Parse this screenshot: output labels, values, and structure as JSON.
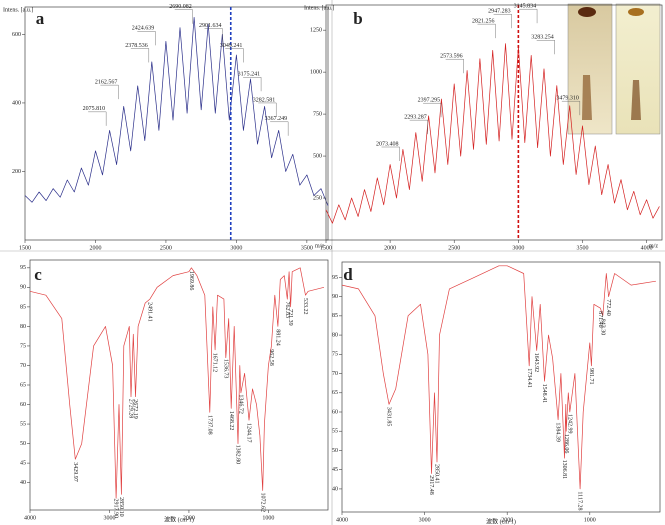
{
  "chart_data": [
    {
      "type": "line",
      "panel": "a",
      "ylabel": "Intens. [a.u.]",
      "xlabel": "m/z",
      "xlim": [
        1500,
        3650
      ],
      "ylim": [
        0,
        680
      ],
      "xticks": [
        1500,
        2000,
        2500,
        3000,
        3500
      ],
      "yticks": [
        200,
        400,
        600
      ],
      "marker_x": 2960,
      "marker_color": "#1f3fbf",
      "peak_labels_vertical": false,
      "series": [
        {
          "color": "#2b2f8a",
          "x": [
            1500,
            1550,
            1600,
            1650,
            1700,
            1750,
            1800,
            1850,
            1900,
            1950,
            2000,
            2050,
            2100,
            2150,
            2200,
            2250,
            2300,
            2350,
            2400,
            2450,
            2500,
            2550,
            2600,
            2650,
            2700,
            2750,
            2800,
            2850,
            2900,
            2950,
            3000,
            3050,
            3100,
            3150,
            3200,
            3250,
            3300,
            3350,
            3400,
            3450,
            3500,
            3550,
            3600,
            3650
          ],
          "values": [
            130,
            110,
            140,
            115,
            150,
            125,
            175,
            140,
            210,
            160,
            260,
            190,
            320,
            220,
            390,
            260,
            450,
            290,
            520,
            320,
            580,
            350,
            620,
            370,
            650,
            380,
            630,
            370,
            600,
            350,
            540,
            320,
            470,
            280,
            390,
            240,
            320,
            200,
            250,
            160,
            190,
            130,
            150,
            100
          ]
        }
      ],
      "peaks": [
        {
          "value": 2075.81,
          "label": "2075.810",
          "y": 374
        },
        {
          "value": 2162.567,
          "label": "2162.567",
          "y": 452
        },
        {
          "value": 2378.536,
          "label": "2378.536",
          "y": 559
        },
        {
          "value": 2424.639,
          "label": "2424.639",
          "y": 609
        },
        {
          "value": 2690.082,
          "label": "2690.082",
          "y": 672
        },
        {
          "value": 2901.634,
          "label": "2901.634",
          "y": 617
        },
        {
          "value": 3049.241,
          "label": "3049.241",
          "y": 559
        },
        {
          "value": 3175.241,
          "label": "3175.241",
          "y": 475
        },
        {
          "value": 3282.581,
          "label": "3282.581",
          "y": 400
        },
        {
          "value": 3367.249,
          "label": "3367.249",
          "y": 345
        }
      ]
    },
    {
      "type": "line",
      "panel": "b",
      "ylabel": "Intens. [a.u.]",
      "xlabel": "m/z",
      "xlim": [
        1500,
        4120
      ],
      "ylim": [
        0,
        1400
      ],
      "xticks": [
        1500,
        2000,
        2500,
        3000,
        3500,
        4000
      ],
      "yticks": [
        250,
        500,
        750,
        1000,
        1250
      ],
      "marker_x": 3000,
      "marker_color": "#d01010",
      "peak_labels_vertical": false,
      "series": [
        {
          "color": "#d42020",
          "x": [
            1500,
            1550,
            1600,
            1650,
            1700,
            1750,
            1800,
            1850,
            1900,
            1950,
            2000,
            2050,
            2100,
            2150,
            2200,
            2250,
            2300,
            2350,
            2400,
            2450,
            2500,
            2550,
            2600,
            2650,
            2700,
            2750,
            2800,
            2850,
            2900,
            2950,
            3000,
            3050,
            3100,
            3150,
            3200,
            3250,
            3300,
            3350,
            3400,
            3450,
            3500,
            3550,
            3600,
            3650,
            3700,
            3750,
            3800,
            3850,
            3900,
            3950,
            4000,
            4050,
            4100
          ],
          "values": [
            180,
            100,
            210,
            120,
            250,
            140,
            300,
            170,
            370,
            210,
            450,
            250,
            540,
            300,
            640,
            350,
            740,
            400,
            840,
            450,
            930,
            500,
            1010,
            540,
            1080,
            570,
            1130,
            590,
            1170,
            600,
            1150,
            580,
            1100,
            550,
            1020,
            500,
            920,
            450,
            800,
            390,
            680,
            330,
            560,
            270,
            450,
            220,
            360,
            180,
            290,
            150,
            240,
            130,
            200
          ]
        }
      ],
      "peaks": [
        {
          "value": 2073.408,
          "label": "2073.408",
          "y": 554
        },
        {
          "value": 2293.287,
          "label": "2293.287",
          "y": 714
        },
        {
          "value": 2397.295,
          "label": "2397.295",
          "y": 815
        },
        {
          "value": 2573.596,
          "label": "2573.596",
          "y": 1077
        },
        {
          "value": 2821.256,
          "label": "2821.256",
          "y": 1286
        },
        {
          "value": 2947.283,
          "label": "2947.283",
          "y": 1345
        },
        {
          "value": 3145.834,
          "label": "3145.834",
          "y": 1375
        },
        {
          "value": 3283.254,
          "label": "3283.254",
          "y": 1190
        },
        {
          "value": 3479.31,
          "label": "3479.310",
          "y": 827
        }
      ]
    },
    {
      "type": "line",
      "panel": "c",
      "xlabel": "波数 (cm-1)",
      "xlim": [
        4000,
        250
      ],
      "ylim": [
        33,
        97
      ],
      "xticks": [
        4000,
        3000,
        2000,
        1000
      ],
      "yticks": [
        40,
        45,
        50,
        55,
        60,
        65,
        70,
        75,
        80,
        85,
        90,
        95
      ],
      "peak_labels_vertical": true,
      "series": [
        {
          "color": "#e04040",
          "x": [
            4000,
            3800,
            3600,
            3500,
            3430,
            3350,
            3200,
            3050,
            2960,
            2917,
            2880,
            2850,
            2820,
            2750,
            2729,
            2700,
            2672,
            2640,
            2550,
            2491,
            2400,
            2200,
            2000,
            1969,
            1900,
            1800,
            1737,
            1700,
            1671,
            1640,
            1560,
            1536,
            1500,
            1468,
            1430,
            1382,
            1360,
            1346,
            1300,
            1244,
            1200,
            1150,
            1107,
            1072,
            1050,
            1000,
            962,
            920,
            881,
            850,
            800,
            762,
            740,
            721,
            700,
            600,
            533,
            500,
            300
          ],
          "values": [
            89,
            88,
            82,
            60,
            46,
            50,
            75,
            80,
            70,
            36,
            60,
            37,
            75,
            80,
            62,
            78,
            62,
            80,
            86,
            87,
            90,
            93,
            94,
            95,
            93,
            88,
            58,
            85,
            74,
            88,
            87,
            72,
            82,
            59,
            80,
            50,
            70,
            63,
            68,
            56,
            64,
            60,
            52,
            38,
            55,
            70,
            75,
            88,
            80,
            92,
            93,
            87,
            94,
            85,
            94,
            95,
            88,
            89,
            90
          ]
        }
      ],
      "peaks": [
        {
          "value": 3429.97,
          "label": "3429.97"
        },
        {
          "value": 2917.9,
          "label": "2917.90"
        },
        {
          "value": 2850.1,
          "label": "2850.10"
        },
        {
          "value": 2729.28,
          "label": "2729.28"
        },
        {
          "value": 2672.19,
          "label": "2672.19"
        },
        {
          "value": 2491.41,
          "label": "2491.41"
        },
        {
          "value": 1969.86,
          "label": "1969.86"
        },
        {
          "value": 1737.08,
          "label": "1737.08"
        },
        {
          "value": 1671.12,
          "label": "1671.12"
        },
        {
          "value": 1536.73,
          "label": "1536.73"
        },
        {
          "value": 1468.22,
          "label": "1468.22"
        },
        {
          "value": 1382.8,
          "label": "1382.80"
        },
        {
          "value": 1346.72,
          "label": "1346.72"
        },
        {
          "value": 1244.17,
          "label": "1244.17"
        },
        {
          "value": 1072.62,
          "label": "1072.62"
        },
        {
          "value": 962.58,
          "label": "962.58"
        },
        {
          "value": 881.24,
          "label": "881.24"
        },
        {
          "value": 762.83,
          "label": "762.83"
        },
        {
          "value": 721.39,
          "label": "721.39"
        },
        {
          "value": 533.22,
          "label": "533.22"
        }
      ]
    },
    {
      "type": "line",
      "panel": "d",
      "xlabel": "波数 (cm-1)",
      "xlim": [
        4000,
        150
      ],
      "ylim": [
        34,
        99
      ],
      "xticks": [
        4000,
        3000,
        2000,
        1000
      ],
      "yticks": [
        40,
        45,
        50,
        55,
        60,
        65,
        70,
        75,
        80,
        85,
        90,
        95
      ],
      "peak_labels_vertical": true,
      "series": [
        {
          "color": "#e04040",
          "x": [
            4000,
            3800,
            3600,
            3500,
            3431,
            3350,
            3200,
            3050,
            2960,
            2917,
            2880,
            2850,
            2820,
            2700,
            2400,
            2100,
            2000,
            1800,
            1734,
            1700,
            1643,
            1600,
            1548,
            1500,
            1450,
            1384,
            1350,
            1306,
            1290,
            1286,
            1260,
            1242,
            1180,
            1117,
            1080,
            1000,
            981,
            950,
            871,
            843,
            800,
            772,
            700,
            500,
            200
          ],
          "values": [
            93,
            92,
            85,
            70,
            62,
            66,
            85,
            88,
            75,
            44,
            65,
            47,
            80,
            92,
            95,
            98,
            98,
            96,
            72,
            90,
            76,
            88,
            68,
            80,
            74,
            58,
            70,
            48,
            62,
            55,
            65,
            60,
            70,
            40,
            60,
            78,
            72,
            88,
            87,
            85,
            96,
            90,
            96,
            93,
            94
          ]
        }
      ],
      "peaks": [
        {
          "value": 3431.85,
          "label": "3431.85"
        },
        {
          "value": 2917.48,
          "label": "2917.48"
        },
        {
          "value": 2850.41,
          "label": "2850.41"
        },
        {
          "value": 1734.41,
          "label": "1734.41"
        },
        {
          "value": 1643.92,
          "label": "1643.92"
        },
        {
          "value": 1548.41,
          "label": "1548.41"
        },
        {
          "value": 1384.39,
          "label": "1384.39"
        },
        {
          "value": 1306.81,
          "label": "1306.81"
        },
        {
          "value": 1286.06,
          "label": "1286.06"
        },
        {
          "value": 1242.99,
          "label": "1242.99"
        },
        {
          "value": 1117.28,
          "label": "1117.28"
        },
        {
          "value": 981.71,
          "label": "981.71"
        },
        {
          "value": 871.4,
          "label": "871.40"
        },
        {
          "value": 843.3,
          "label": "843.30"
        },
        {
          "value": 772.4,
          "label": "772.40"
        }
      ]
    }
  ]
}
